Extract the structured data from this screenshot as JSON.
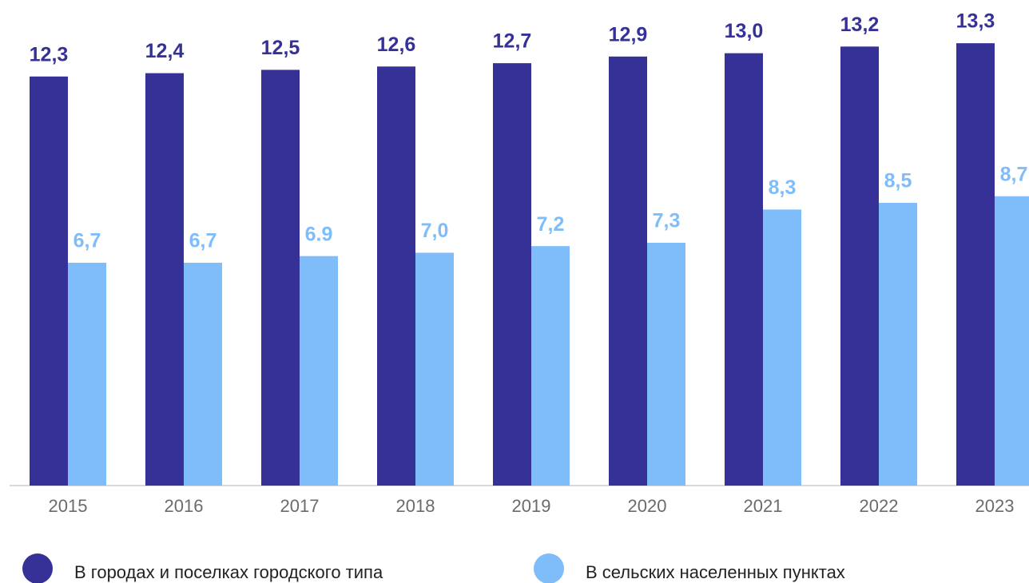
{
  "chart_data": {
    "type": "bar",
    "categories": [
      "2015",
      "2016",
      "2017",
      "2018",
      "2019",
      "2020",
      "2021",
      "2022",
      "2023"
    ],
    "series": [
      {
        "name": "В городах и поселках городского типа",
        "color": "#363197",
        "values": [
          12.3,
          12.4,
          12.5,
          12.6,
          12.7,
          12.9,
          13.0,
          13.2,
          13.3
        ],
        "value_labels": [
          "12,3",
          "12,4",
          "12,5",
          "12,6",
          "12,7",
          "12,9",
          "13,0",
          "13,2",
          "13,3"
        ]
      },
      {
        "name": "В сельских населенных пунктах",
        "color": "#7fbcfa",
        "values": [
          6.7,
          6.7,
          6.9,
          7.0,
          7.2,
          7.3,
          8.3,
          8.5,
          8.7
        ],
        "value_labels": [
          "6,7",
          "6,7",
          "6.9",
          "7,0",
          "7,2",
          "7,3",
          "8,3",
          "8,5",
          "8,7"
        ]
      }
    ],
    "ylim": [
      0,
      14.6
    ],
    "legend": "bottom"
  }
}
